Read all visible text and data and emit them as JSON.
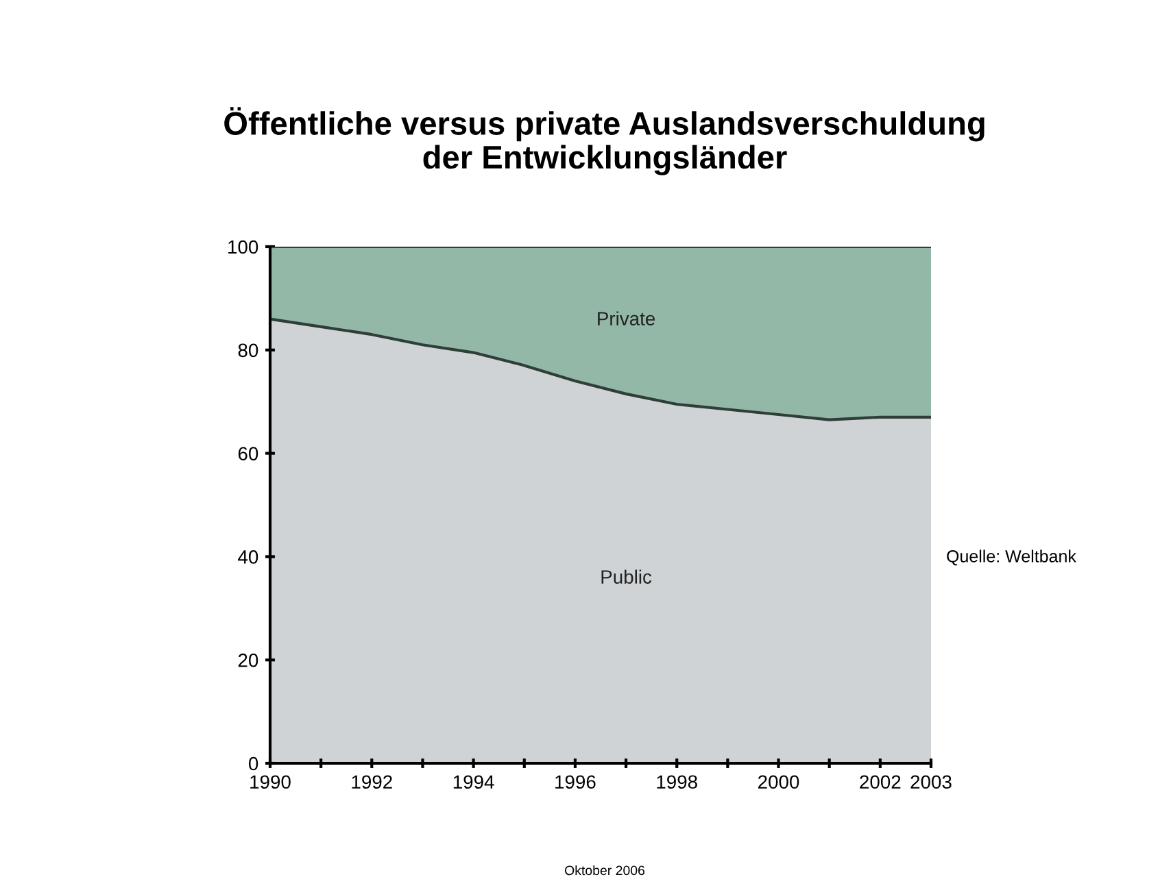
{
  "chart_data": {
    "type": "area",
    "stacked": true,
    "title": "Öffentliche versus private Auslandsverschuldung\nder Entwicklungsländer",
    "x": [
      1990,
      1991,
      1992,
      1993,
      1994,
      1995,
      1996,
      1997,
      1998,
      1999,
      2000,
      2001,
      2002,
      2003
    ],
    "series": [
      {
        "name": "Public",
        "color": "#d0d3d6",
        "values": [
          86,
          84.5,
          83,
          81,
          79.5,
          77,
          74,
          71.5,
          69.5,
          68.5,
          67.5,
          66.5,
          67,
          67
        ]
      },
      {
        "name": "Private",
        "color": "#94b8a8",
        "values": [
          14,
          15.5,
          17,
          19,
          20.5,
          23,
          26,
          28.5,
          30.5,
          31.5,
          32.5,
          33.5,
          33,
          33
        ]
      }
    ],
    "xlim": [
      1990,
      2003
    ],
    "ylim": [
      0,
      100
    ],
    "xticks": [
      1990,
      {
        "value": 1991,
        "label": null
      },
      1992,
      {
        "value": 1993,
        "label": null
      },
      1994,
      {
        "value": 1995,
        "label": null
      },
      1996,
      {
        "value": 1997,
        "label": null
      },
      1998,
      {
        "value": 1999,
        "label": null
      },
      2000,
      {
        "value": 2001,
        "label": null
      },
      2002,
      2003
    ],
    "yticks": [
      0,
      20,
      40,
      60,
      80,
      100
    ],
    "grid": false,
    "legend": false,
    "annotations": [
      "Quelle: Weltbank",
      "Oktober 2006"
    ]
  }
}
